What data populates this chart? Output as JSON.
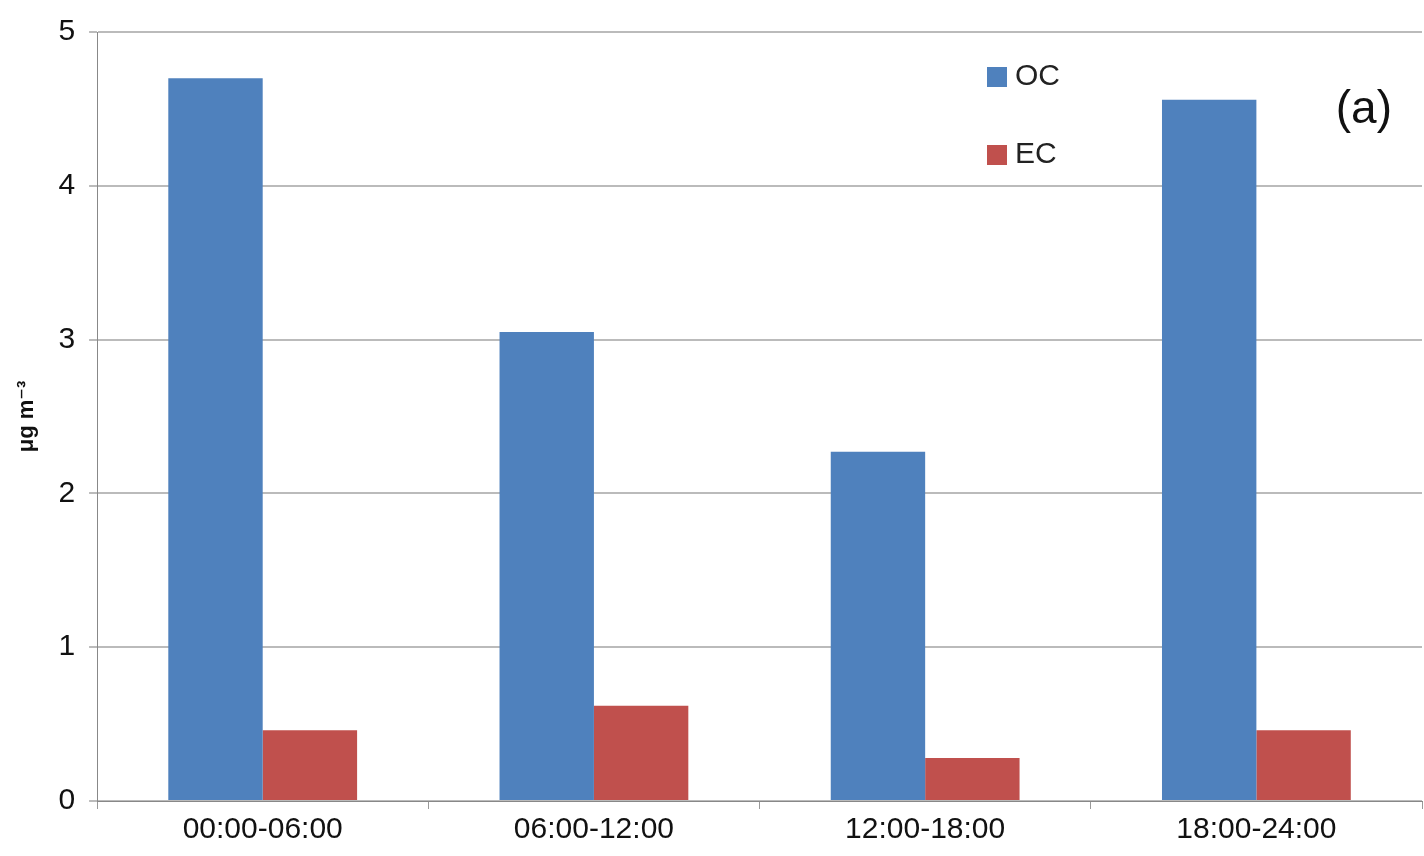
{
  "chart_data": {
    "type": "bar",
    "ylabel": "μg m⁻³",
    "annotations": [
      "(a)"
    ],
    "categories": [
      "00:00-06:00",
      "06:00-12:00",
      "12:00-18:00",
      "18:00-24:00"
    ],
    "series": [
      {
        "name": "OC",
        "color": "#4f81bd",
        "values": [
          4.7,
          3.05,
          2.27,
          4.56
        ]
      },
      {
        "name": "EC",
        "color": "#c0504d",
        "values": [
          0.46,
          0.62,
          0.28,
          0.46
        ]
      }
    ],
    "ylim": [
      0,
      5
    ],
    "yticks": [
      0,
      1,
      2,
      3,
      4,
      5
    ],
    "grid": "y",
    "legend": "top right"
  }
}
